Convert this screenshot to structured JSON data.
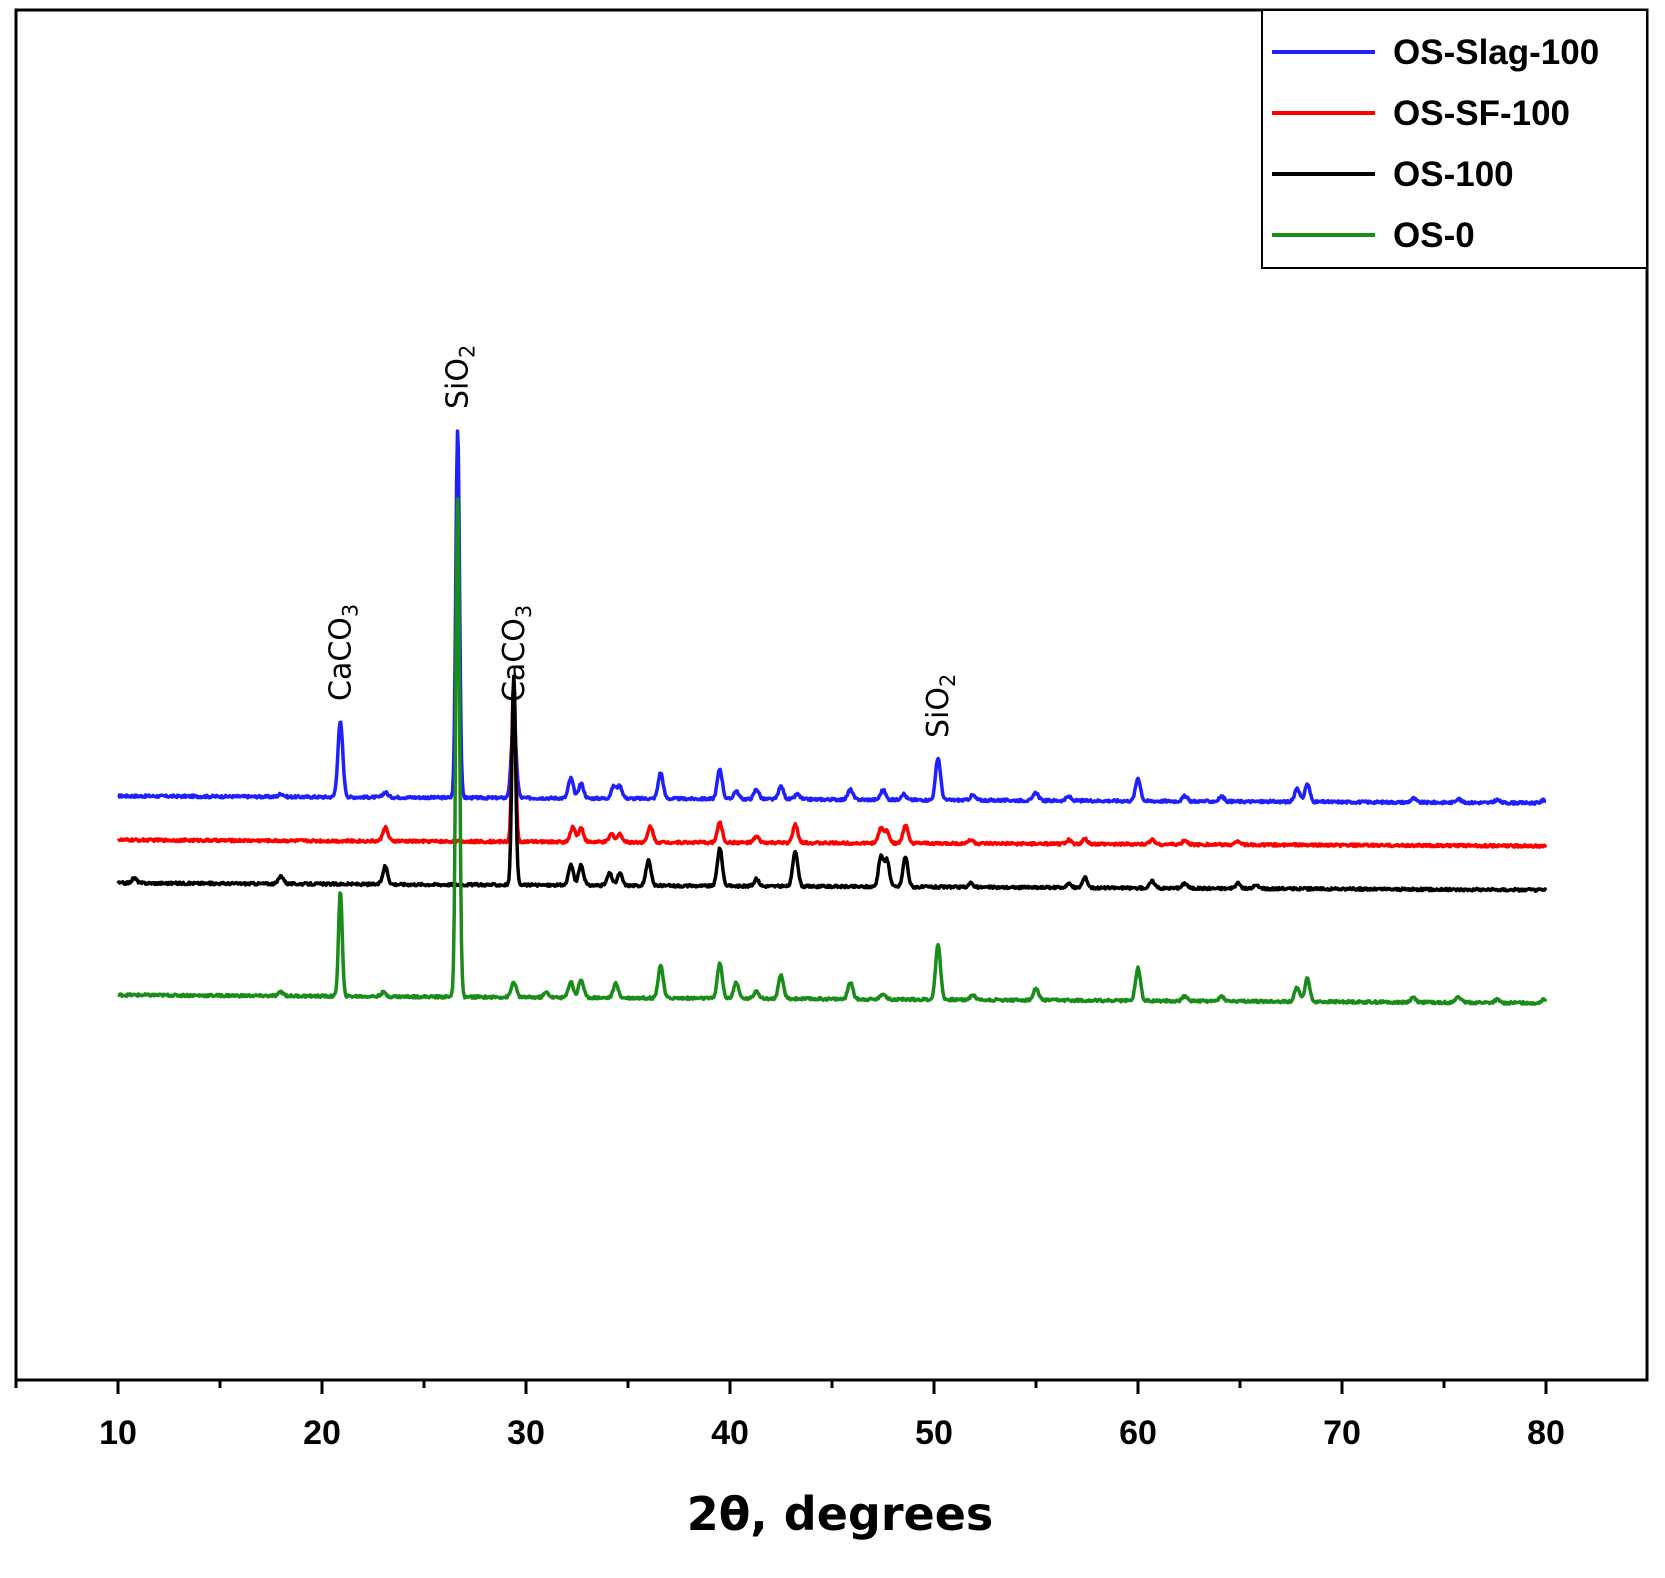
{
  "chart_data": {
    "type": "line",
    "title": "",
    "xlabel": "2θ, degrees",
    "ylabel": "",
    "xlim": [
      5,
      82
    ],
    "x_ticks": [
      10,
      20,
      30,
      40,
      50,
      60,
      70,
      80
    ],
    "x_tick_labels": [
      "10",
      "20",
      "30",
      "40",
      "50",
      "60",
      "70",
      "80"
    ],
    "y_ticks_shown": false,
    "grid": false,
    "legend_position": "top-right",
    "series": [
      {
        "name": "OS-Slag-100",
        "color": "#1f1fff",
        "baseline_start": 0.87,
        "baseline_end": 0.8,
        "peaks": [
          [
            18.0,
            0.03
          ],
          [
            20.9,
            0.75
          ],
          [
            23.1,
            0.05
          ],
          [
            26.65,
            3.7
          ],
          [
            29.4,
            0.75
          ],
          [
            32.2,
            0.2
          ],
          [
            32.7,
            0.15
          ],
          [
            34.3,
            0.12
          ],
          [
            34.6,
            0.12
          ],
          [
            36.6,
            0.26
          ],
          [
            39.5,
            0.3
          ],
          [
            40.3,
            0.08
          ],
          [
            41.3,
            0.1
          ],
          [
            42.5,
            0.13
          ],
          [
            43.3,
            0.05
          ],
          [
            45.9,
            0.1
          ],
          [
            47.5,
            0.1
          ],
          [
            48.5,
            0.06
          ],
          [
            50.2,
            0.42
          ],
          [
            51.9,
            0.05
          ],
          [
            55.0,
            0.08
          ],
          [
            56.6,
            0.04
          ],
          [
            60.0,
            0.23
          ],
          [
            62.3,
            0.05
          ],
          [
            64.1,
            0.05
          ],
          [
            67.8,
            0.14
          ],
          [
            68.3,
            0.18
          ],
          [
            73.5,
            0.04
          ],
          [
            75.7,
            0.04
          ],
          [
            77.6,
            0.03
          ],
          [
            79.9,
            0.03
          ]
        ]
      },
      {
        "name": "OS-SF-100",
        "color": "#ff0000",
        "baseline_start": 0.43,
        "baseline_end": 0.37,
        "peaks": [
          [
            23.1,
            0.14
          ],
          [
            29.4,
            1.6
          ],
          [
            32.3,
            0.15
          ],
          [
            32.7,
            0.14
          ],
          [
            34.2,
            0.08
          ],
          [
            34.6,
            0.08
          ],
          [
            36.1,
            0.16
          ],
          [
            39.5,
            0.2
          ],
          [
            41.3,
            0.06
          ],
          [
            43.2,
            0.18
          ],
          [
            47.4,
            0.15
          ],
          [
            47.7,
            0.12
          ],
          [
            48.6,
            0.18
          ],
          [
            51.8,
            0.04
          ],
          [
            56.6,
            0.04
          ],
          [
            57.4,
            0.05
          ],
          [
            60.7,
            0.05
          ],
          [
            62.3,
            0.04
          ],
          [
            64.9,
            0.04
          ]
        ]
      },
      {
        "name": "OS-100",
        "color": "#000000",
        "baseline_start": 0.0,
        "baseline_end": -0.07,
        "peaks": [
          [
            10.8,
            0.05
          ],
          [
            18.0,
            0.08
          ],
          [
            23.1,
            0.18
          ],
          [
            29.4,
            2.1
          ],
          [
            32.2,
            0.2
          ],
          [
            32.7,
            0.2
          ],
          [
            34.1,
            0.12
          ],
          [
            34.6,
            0.12
          ],
          [
            36.0,
            0.25
          ],
          [
            39.5,
            0.38
          ],
          [
            41.3,
            0.07
          ],
          [
            43.2,
            0.36
          ],
          [
            47.4,
            0.3
          ],
          [
            47.7,
            0.26
          ],
          [
            48.6,
            0.3
          ],
          [
            51.8,
            0.04
          ],
          [
            56.6,
            0.04
          ],
          [
            57.4,
            0.1
          ],
          [
            60.7,
            0.07
          ],
          [
            62.3,
            0.05
          ],
          [
            64.9,
            0.05
          ],
          [
            65.8,
            0.03
          ]
        ]
      },
      {
        "name": "OS-0",
        "color": "#1a8c1a",
        "baseline_start": -1.12,
        "baseline_end": -1.2,
        "peaks": [
          [
            18.0,
            0.04
          ],
          [
            20.9,
            1.05
          ],
          [
            23.0,
            0.04
          ],
          [
            26.65,
            5.0
          ],
          [
            29.4,
            0.15
          ],
          [
            31.0,
            0.05
          ],
          [
            32.2,
            0.16
          ],
          [
            32.7,
            0.18
          ],
          [
            34.4,
            0.14
          ],
          [
            36.6,
            0.33
          ],
          [
            39.5,
            0.35
          ],
          [
            40.3,
            0.16
          ],
          [
            41.3,
            0.08
          ],
          [
            42.5,
            0.23
          ],
          [
            45.9,
            0.17
          ],
          [
            47.5,
            0.06
          ],
          [
            50.2,
            0.55
          ],
          [
            51.9,
            0.05
          ],
          [
            55.0,
            0.12
          ],
          [
            60.0,
            0.33
          ],
          [
            62.3,
            0.05
          ],
          [
            64.1,
            0.05
          ],
          [
            67.8,
            0.15
          ],
          [
            68.3,
            0.23
          ],
          [
            73.5,
            0.05
          ],
          [
            75.7,
            0.06
          ],
          [
            77.6,
            0.03
          ],
          [
            79.9,
            0.04
          ]
        ]
      }
    ],
    "annotations": [
      {
        "main": "CaCO",
        "sub": "3",
        "x": 20.9
      },
      {
        "main": "SiO",
        "sub": "2",
        "x": 26.65
      },
      {
        "main": "CaCO",
        "sub": "3",
        "x": 29.4
      },
      {
        "main": "SiO",
        "sub": "2",
        "x": 50.2
      }
    ]
  }
}
